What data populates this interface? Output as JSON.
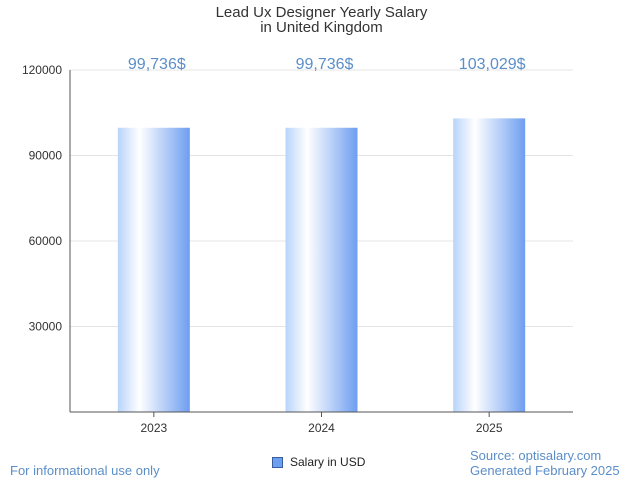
{
  "chart_data": {
    "type": "bar",
    "title": [
      "Lead Ux Designer Yearly Salary",
      "in United Kingdom"
    ],
    "categories": [
      "2023",
      "2024",
      "2025"
    ],
    "series": [
      {
        "name": "Salary in USD",
        "values": [
          99736,
          99736,
          103029
        ]
      }
    ],
    "data_labels": [
      "99,736$",
      "99,736$",
      "103,029$"
    ],
    "y_ticks": [
      "120000",
      "90000",
      "60000",
      "30000"
    ],
    "ylim": [
      0,
      120000
    ],
    "grid": true,
    "legend_position": "bottom"
  },
  "footer": {
    "left": "For informational use only",
    "right_line1": "Source: optisalary.com",
    "right_line2": "Generated February 2025"
  },
  "colors": {
    "bar_gradient": [
      "#b8d4fa",
      "#ffffff",
      "#6e9ef0"
    ],
    "data_label": "#5b8ec9",
    "grid": "#e4e4e4",
    "axis": "#555555",
    "legend_swatch": "#6e9ef0"
  }
}
